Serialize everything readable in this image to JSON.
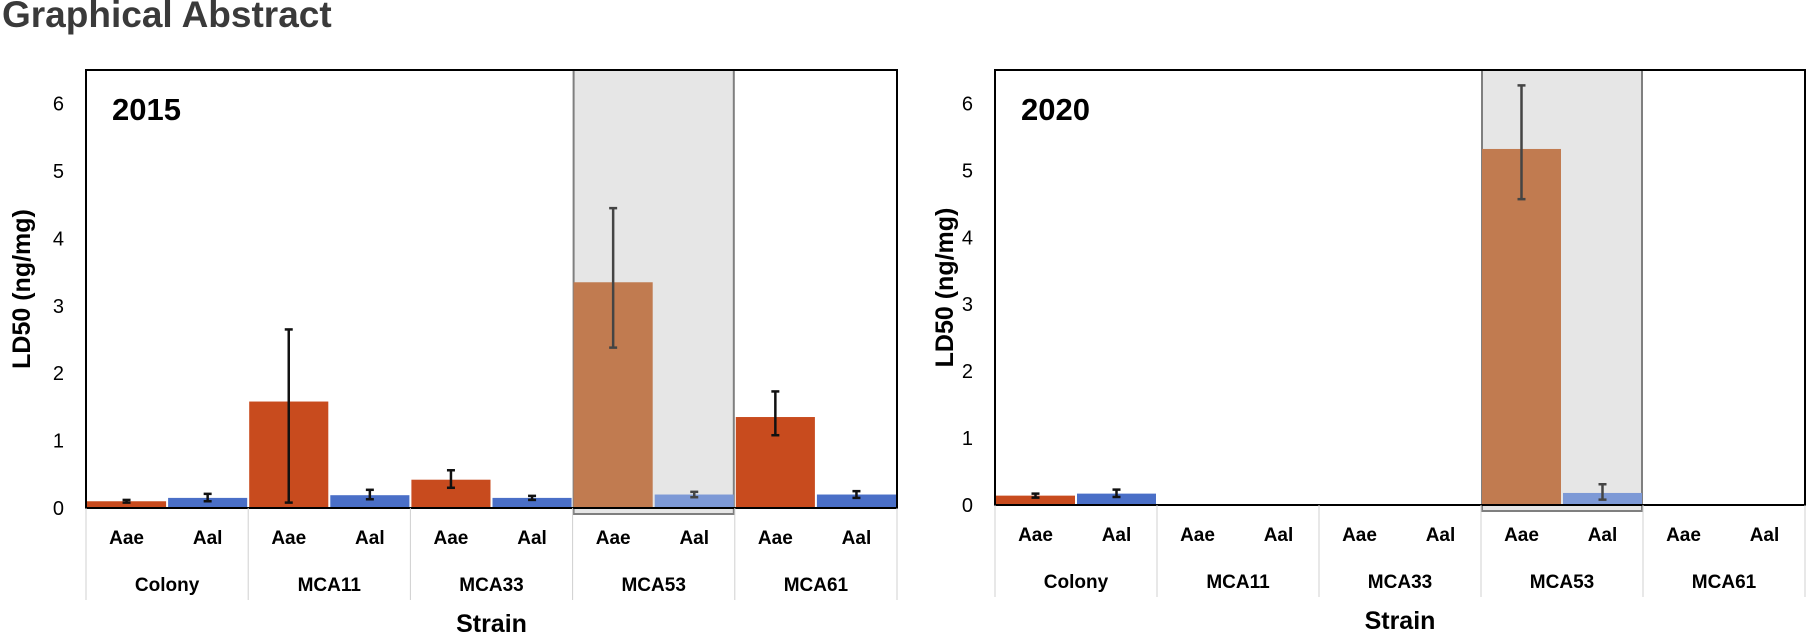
{
  "page": {
    "title": "Graphical Abstract"
  },
  "colors": {
    "aae": "#c84b1e",
    "aal": "#4a6fc7",
    "aae_highlight": "#c17b50",
    "aal_highlight": "#7d99d6",
    "highlight_bg": "#e6e6e6",
    "highlight_border": "#7f7f7f",
    "error_bar": "#111111",
    "error_bar_highlight": "#444444"
  },
  "chart_data": [
    {
      "type": "bar",
      "title": "2015",
      "xlabel": "Strain",
      "ylabel": "LD50 (ng/mg)",
      "ylim": [
        0,
        6.5
      ],
      "yticks": [
        "0",
        "1",
        "2",
        "3",
        "4",
        "5",
        "6"
      ],
      "categories": [
        "Colony",
        "MCA11",
        "MCA33",
        "MCA53",
        "MCA61"
      ],
      "species": [
        "Aae",
        "Aal"
      ],
      "highlight": "MCA53",
      "series": [
        {
          "values": [
            0.1,
            1.58,
            0.42,
            3.35,
            1.35
          ],
          "err_low": [
            0.02,
            1.5,
            0.12,
            0.97,
            0.27
          ],
          "err_high": [
            0.02,
            1.07,
            0.14,
            1.1,
            0.38
          ]
        },
        {
          "values": [
            0.15,
            0.19,
            0.15,
            0.2,
            0.2
          ],
          "err_low": [
            0.05,
            0.06,
            0.03,
            0.04,
            0.05
          ],
          "err_high": [
            0.06,
            0.08,
            0.03,
            0.04,
            0.05
          ]
        }
      ]
    },
    {
      "type": "bar",
      "title": "2020",
      "xlabel": "Strain",
      "ylabel": "LD50 (ng/mg)",
      "ylim": [
        0,
        6.5
      ],
      "yticks": [
        "0",
        "1",
        "2",
        "3",
        "4",
        "5",
        "6"
      ],
      "categories": [
        "Colony",
        "MCA11",
        "MCA33",
        "MCA53",
        "MCA61"
      ],
      "species": [
        "Aae",
        "Aal"
      ],
      "highlight": "MCA53",
      "series": [
        {
          "values": [
            0.14,
            null,
            null,
            5.32,
            null
          ],
          "err_low": [
            0.03,
            null,
            null,
            0.75,
            null
          ],
          "err_high": [
            0.03,
            null,
            null,
            0.95,
            null
          ]
        },
        {
          "values": [
            0.17,
            null,
            null,
            0.18,
            null
          ],
          "err_low": [
            0.05,
            null,
            null,
            0.1,
            null
          ],
          "err_high": [
            0.06,
            null,
            null,
            0.13,
            null
          ]
        }
      ]
    }
  ]
}
